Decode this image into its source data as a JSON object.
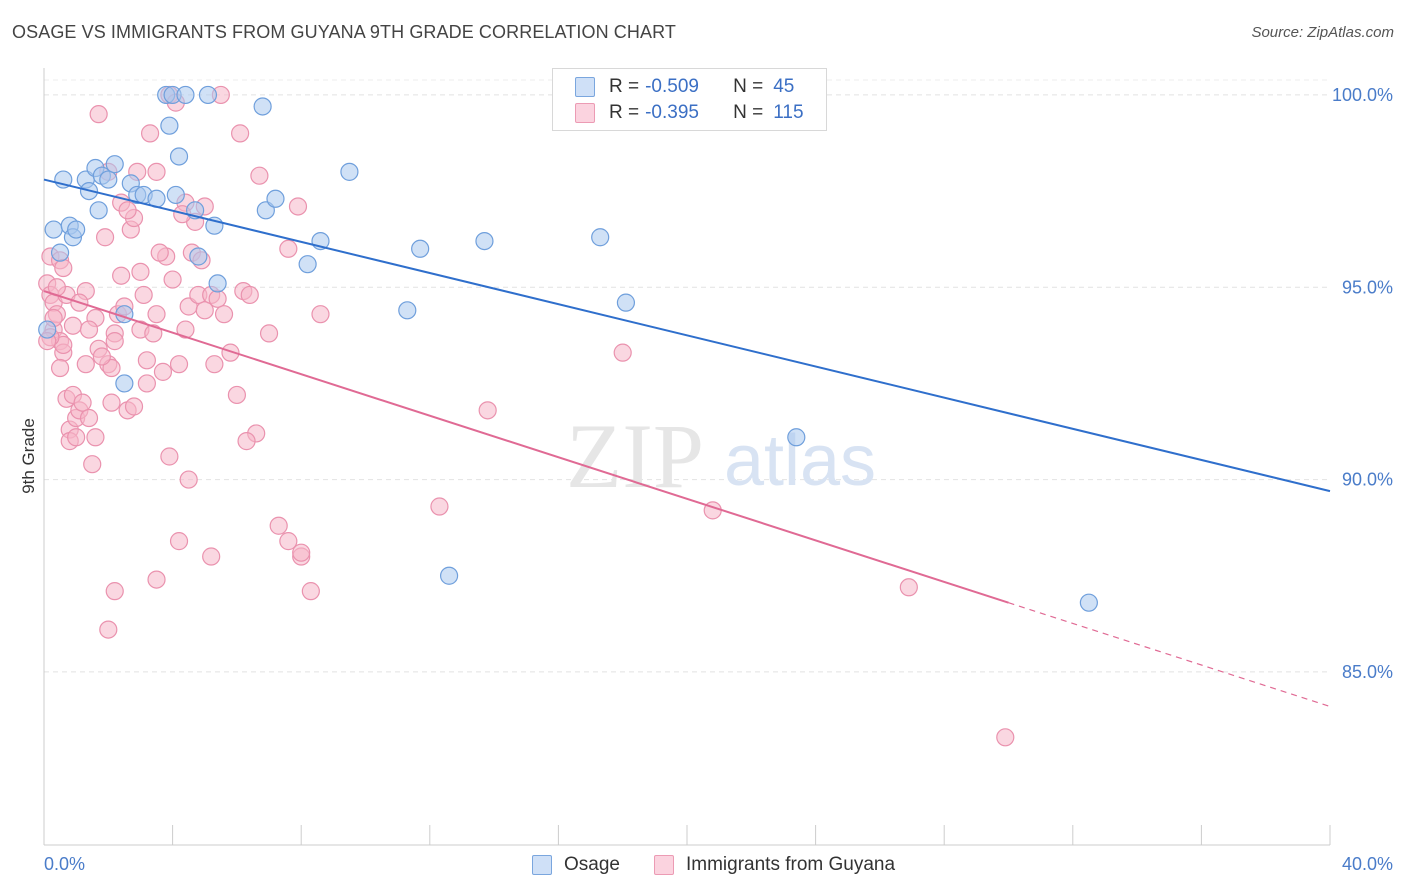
{
  "header": {
    "title": "OSAGE VS IMMIGRANTS FROM GUYANA 9TH GRADE CORRELATION CHART",
    "source": "Source: ZipAtlas.com"
  },
  "watermark": {
    "zip": "ZIP",
    "atlas": "atlas"
  },
  "legend": {
    "rows": [
      {
        "r_label": "R = ",
        "r_value": "-0.509",
        "n_label": "N = ",
        "n_value": "45",
        "color": "#a9c8ef"
      },
      {
        "r_label": "R = ",
        "r_value": "-0.395",
        "n_label": "N = ",
        "n_value": "115",
        "color": "#f6b6c9"
      }
    ]
  },
  "bottom_legend": [
    {
      "label": "Osage",
      "color": "#a9c8ef"
    },
    {
      "label": "Immigrants from Guyana",
      "color": "#f6b6c9"
    }
  ],
  "chart_data": {
    "type": "scatter",
    "title": "OSAGE VS IMMIGRANTS FROM GUYANA 9TH GRADE CORRELATION CHART",
    "xlabel": "",
    "ylabel": "9th Grade",
    "xlim": [
      0,
      40
    ],
    "ylim": [
      80.5,
      100.7
    ],
    "x_tick_labels": [
      {
        "value": 0,
        "label": "0.0%"
      },
      {
        "value": 40,
        "label": "40.0%"
      }
    ],
    "y_tick_labels": [
      {
        "value": 100,
        "label": "100.0%"
      },
      {
        "value": 95,
        "label": "95.0%"
      },
      {
        "value": 90,
        "label": "90.0%"
      },
      {
        "value": 85,
        "label": "85.0%"
      }
    ],
    "grid": true,
    "series": [
      {
        "name": "Osage",
        "color": "#a9c8ef",
        "stroke": "#6f9fdc",
        "line_color": "#2f6fcc",
        "trend": {
          "x0": 0,
          "y0": 97.8,
          "x1": 40,
          "y1": 89.7,
          "solid_until": 40
        },
        "points": [
          [
            0.3,
            96.5
          ],
          [
            0.5,
            95.9
          ],
          [
            0.6,
            97.8
          ],
          [
            0.8,
            96.6
          ],
          [
            0.9,
            96.3
          ],
          [
            1.0,
            96.5
          ],
          [
            1.3,
            97.8
          ],
          [
            1.4,
            97.5
          ],
          [
            1.6,
            98.1
          ],
          [
            1.7,
            97.0
          ],
          [
            1.8,
            97.9
          ],
          [
            2.0,
            97.8
          ],
          [
            2.2,
            98.2
          ],
          [
            2.5,
            94.3
          ],
          [
            2.7,
            97.7
          ],
          [
            2.9,
            97.4
          ],
          [
            3.1,
            97.4
          ],
          [
            3.5,
            97.3
          ],
          [
            3.8,
            100.0
          ],
          [
            3.9,
            99.2
          ],
          [
            4.0,
            100.0
          ],
          [
            4.1,
            97.4
          ],
          [
            4.2,
            98.4
          ],
          [
            4.4,
            100.0
          ],
          [
            4.7,
            97.0
          ],
          [
            4.8,
            95.8
          ],
          [
            5.1,
            100.0
          ],
          [
            5.3,
            96.6
          ],
          [
            5.4,
            95.1
          ],
          [
            6.8,
            99.7
          ],
          [
            6.9,
            97.0
          ],
          [
            7.2,
            97.3
          ],
          [
            8.2,
            95.6
          ],
          [
            8.6,
            96.2
          ],
          [
            9.5,
            98.0
          ],
          [
            11.3,
            94.4
          ],
          [
            11.7,
            96.0
          ],
          [
            12.6,
            87.5
          ],
          [
            13.7,
            96.2
          ],
          [
            17.3,
            96.3
          ],
          [
            18.1,
            94.6
          ],
          [
            2.5,
            92.5
          ],
          [
            23.4,
            91.1
          ],
          [
            32.5,
            86.8
          ],
          [
            0.1,
            93.9
          ]
        ]
      },
      {
        "name": "Immigrants from Guyana",
        "color": "#f6b6c9",
        "stroke": "#ea92ae",
        "line_color": "#e06a94",
        "trend": {
          "x0": 0,
          "y0": 94.9,
          "x1": 40,
          "y1": 84.1,
          "solid_until": 30
        },
        "points": [
          [
            0.1,
            95.1
          ],
          [
            0.2,
            94.8
          ],
          [
            0.2,
            95.8
          ],
          [
            0.3,
            94.6
          ],
          [
            0.3,
            93.9
          ],
          [
            0.4,
            94.3
          ],
          [
            0.5,
            93.6
          ],
          [
            0.5,
            95.7
          ],
          [
            0.6,
            93.3
          ],
          [
            0.6,
            93.5
          ],
          [
            0.7,
            92.1
          ],
          [
            0.7,
            94.8
          ],
          [
            0.8,
            91.3
          ],
          [
            0.8,
            91.0
          ],
          [
            0.9,
            92.2
          ],
          [
            1.0,
            91.6
          ],
          [
            1.0,
            91.1
          ],
          [
            1.1,
            91.8
          ],
          [
            1.2,
            92.0
          ],
          [
            1.3,
            93.0
          ],
          [
            1.4,
            91.6
          ],
          [
            1.5,
            90.4
          ],
          [
            1.6,
            91.1
          ],
          [
            1.7,
            93.4
          ],
          [
            1.9,
            96.3
          ],
          [
            2.0,
            93.0
          ],
          [
            2.1,
            92.9
          ],
          [
            2.2,
            93.8
          ],
          [
            2.3,
            94.3
          ],
          [
            2.4,
            95.3
          ],
          [
            2.5,
            94.5
          ],
          [
            2.6,
            91.8
          ],
          [
            2.7,
            96.5
          ],
          [
            2.8,
            96.8
          ],
          [
            3.0,
            93.9
          ],
          [
            3.1,
            94.8
          ],
          [
            3.2,
            92.5
          ],
          [
            3.4,
            93.8
          ],
          [
            3.5,
            94.3
          ],
          [
            3.7,
            92.8
          ],
          [
            3.8,
            95.8
          ],
          [
            4.0,
            95.2
          ],
          [
            4.2,
            93.0
          ],
          [
            4.4,
            93.9
          ],
          [
            4.5,
            94.5
          ],
          [
            4.6,
            95.9
          ],
          [
            4.8,
            94.8
          ],
          [
            5.0,
            94.4
          ],
          [
            5.2,
            94.8
          ],
          [
            5.4,
            94.7
          ],
          [
            5.6,
            94.3
          ],
          [
            5.8,
            93.3
          ],
          [
            6.0,
            92.2
          ],
          [
            6.2,
            94.9
          ],
          [
            6.4,
            94.8
          ],
          [
            6.6,
            91.2
          ],
          [
            7.0,
            93.8
          ],
          [
            7.3,
            88.8
          ],
          [
            7.6,
            96.0
          ],
          [
            7.9,
            97.1
          ],
          [
            8.0,
            88.0
          ],
          [
            8.3,
            87.1
          ],
          [
            8.6,
            94.3
          ],
          [
            1.7,
            99.5
          ],
          [
            2.0,
            98.0
          ],
          [
            2.4,
            97.2
          ],
          [
            2.9,
            98.0
          ],
          [
            3.3,
            99.0
          ],
          [
            3.5,
            98.0
          ],
          [
            3.9,
            100.0
          ],
          [
            4.1,
            99.8
          ],
          [
            4.4,
            97.2
          ],
          [
            4.7,
            96.7
          ],
          [
            5.0,
            97.1
          ],
          [
            5.5,
            100.0
          ],
          [
            6.1,
            99.0
          ],
          [
            6.7,
            97.9
          ],
          [
            0.3,
            94.2
          ],
          [
            0.4,
            95.0
          ],
          [
            0.6,
            95.5
          ],
          [
            0.9,
            94.0
          ],
          [
            1.3,
            94.9
          ],
          [
            1.6,
            94.2
          ],
          [
            1.8,
            93.2
          ],
          [
            2.1,
            92.0
          ],
          [
            2.6,
            97.0
          ],
          [
            3.0,
            95.4
          ],
          [
            3.6,
            95.9
          ],
          [
            4.3,
            96.9
          ],
          [
            4.9,
            95.7
          ],
          [
            5.3,
            93.0
          ],
          [
            0.2,
            93.7
          ],
          [
            0.5,
            92.9
          ],
          [
            1.1,
            94.6
          ],
          [
            1.4,
            93.9
          ],
          [
            2.2,
            93.6
          ],
          [
            2.8,
            91.9
          ],
          [
            3.2,
            93.1
          ],
          [
            3.9,
            90.6
          ],
          [
            4.5,
            90.0
          ],
          [
            5.2,
            88.0
          ],
          [
            6.3,
            91.0
          ],
          [
            7.6,
            88.4
          ],
          [
            12.3,
            89.3
          ],
          [
            13.8,
            91.8
          ],
          [
            18.0,
            93.3
          ],
          [
            20.8,
            89.2
          ],
          [
            26.9,
            87.2
          ],
          [
            29.9,
            83.3
          ],
          [
            2.2,
            87.1
          ],
          [
            2.0,
            86.1
          ],
          [
            3.5,
            87.4
          ],
          [
            4.2,
            88.4
          ],
          [
            8.0,
            88.1
          ],
          [
            0.1,
            93.6
          ]
        ]
      }
    ]
  }
}
